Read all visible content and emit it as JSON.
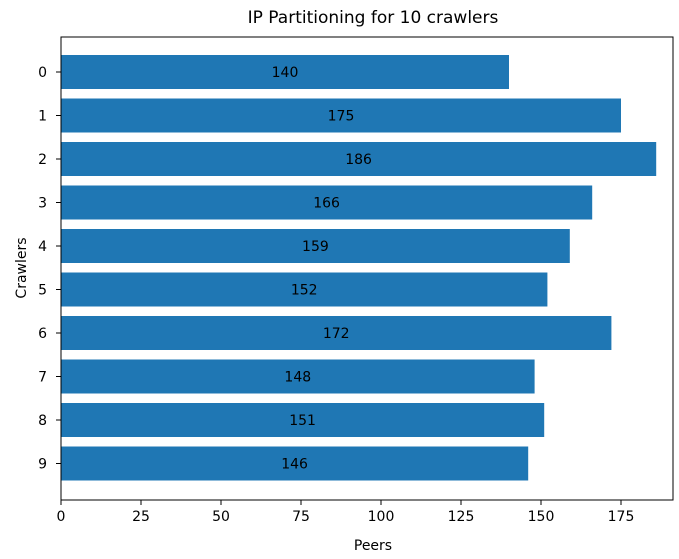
{
  "chart_data": {
    "type": "bar",
    "orientation": "horizontal",
    "title": "IP Partitioning for 10 crawlers",
    "xlabel": "Peers",
    "ylabel": "Crawlers",
    "categories": [
      "0",
      "1",
      "2",
      "3",
      "4",
      "5",
      "6",
      "7",
      "8",
      "9"
    ],
    "values": [
      140,
      175,
      186,
      166,
      159,
      152,
      172,
      148,
      151,
      146
    ],
    "xlim": [
      0,
      195
    ],
    "xticks": [
      "0",
      "25",
      "50",
      "75",
      "100",
      "125",
      "150",
      "175"
    ],
    "grid": false,
    "legend": "none",
    "bar_color": "#1f77b4"
  }
}
